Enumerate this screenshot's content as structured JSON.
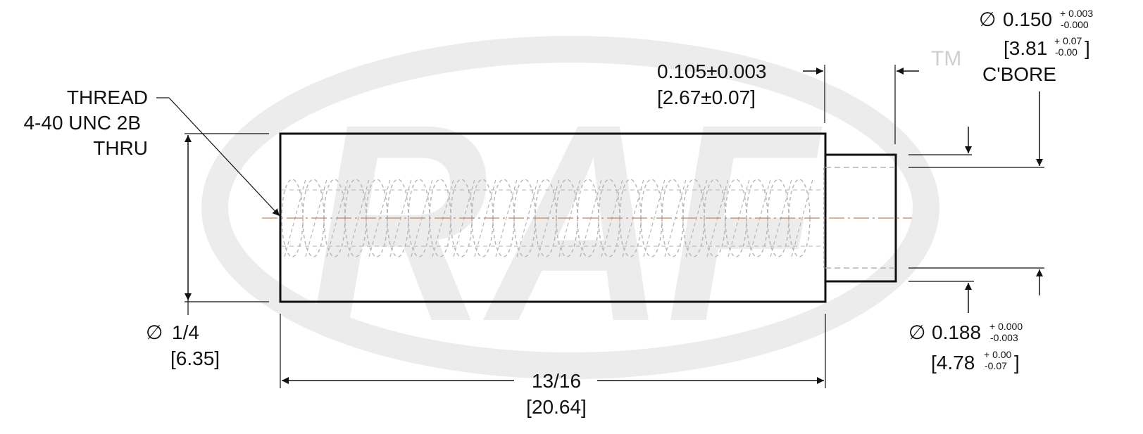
{
  "watermark": {
    "logo_text": "RAF",
    "trademark": "TM",
    "color": "#ececec"
  },
  "callouts": {
    "thread": [
      "THREAD",
      "4-40 UNC 2B",
      "THRU"
    ]
  },
  "dimensions": {
    "outer_diameter": {
      "symbol": "∅",
      "imperial": "1/4",
      "metric": "[6.35]"
    },
    "overall_length": {
      "imperial": "13/16",
      "metric": "[20.64]"
    },
    "cbore_depth": {
      "imperial": "0.105±0.003",
      "metric": "[2.67±0.07]"
    },
    "cbore_diameter": {
      "symbol": "∅",
      "imperial_base": "0.150",
      "imperial_tol_plus": "+ 0.003",
      "imperial_tol_minus": "-0.000",
      "metric_base": "[3.81",
      "metric_tol_plus": "+ 0.07",
      "metric_tol_minus": "-0.00",
      "metric_close": "]",
      "label": "C'BORE"
    },
    "shoulder_diameter": {
      "symbol": "∅",
      "imperial_base": "0.188",
      "imperial_tol_plus": "+ 0.000",
      "imperial_tol_minus": "-0.003",
      "metric_base": "[4.78",
      "metric_tol_plus": "+ 0.00",
      "metric_tol_minus": "-0.07",
      "metric_close": "]"
    }
  },
  "colors": {
    "outline": "#111111",
    "centerline": "#c8855a",
    "thread_hidden": "#b4b4bc"
  }
}
